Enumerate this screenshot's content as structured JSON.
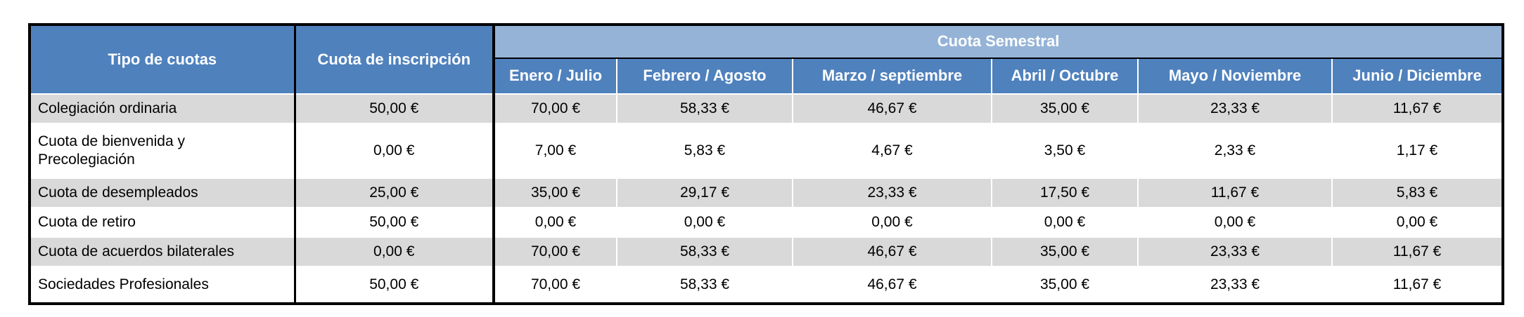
{
  "table": {
    "header": {
      "tipo": "Tipo de cuotas",
      "inscripcion": "Cuota de inscripción",
      "semestral": "Cuota Semestral",
      "months": [
        "Enero / Julio",
        "Febrero / Agosto",
        "Marzo / septiembre",
        "Abril / Octubre",
        "Mayo / Noviembre",
        "Junio / Diciembre"
      ]
    },
    "rows": [
      {
        "label": "Colegiación ordinaria",
        "inscripcion": "50,00 €",
        "months": [
          "70,00 €",
          "58,33 €",
          "46,67 €",
          "35,00 €",
          "23,33 €",
          "11,67 €"
        ]
      },
      {
        "label": "Cuota de bienvenida y Precolegiación",
        "inscripcion": "0,00 €",
        "months": [
          "7,00 €",
          "5,83 €",
          "4,67 €",
          "3,50 €",
          "2,33 €",
          "1,17 €"
        ]
      },
      {
        "label": "Cuota de desempleados",
        "inscripcion": "25,00 €",
        "months": [
          "35,00 €",
          "29,17 €",
          "23,33 €",
          "17,50 €",
          "11,67 €",
          "5,83 €"
        ]
      },
      {
        "label": "Cuota de retiro",
        "inscripcion": "50,00 €",
        "months": [
          "0,00 €",
          "0,00 €",
          "0,00 €",
          "0,00 €",
          "0,00 €",
          "0,00 €"
        ]
      },
      {
        "label": "Cuota de acuerdos bilaterales",
        "inscripcion": "0,00 €",
        "months": [
          "70,00 €",
          "58,33 €",
          "46,67 €",
          "35,00 €",
          "23,33 €",
          "11,67 €"
        ]
      },
      {
        "label": "Sociedades Profesionales",
        "inscripcion": "50,00 €",
        "months": [
          "70,00 €",
          "58,33 €",
          "46,67 €",
          "35,00 €",
          "23,33 €",
          "11,67 €"
        ]
      }
    ],
    "colors": {
      "header_blue": "#4f81bd",
      "band_light_blue": "#95b3d7",
      "stripe_gray": "#d9d9d9",
      "border_black": "#000000",
      "header_text": "#ffffff"
    }
  }
}
